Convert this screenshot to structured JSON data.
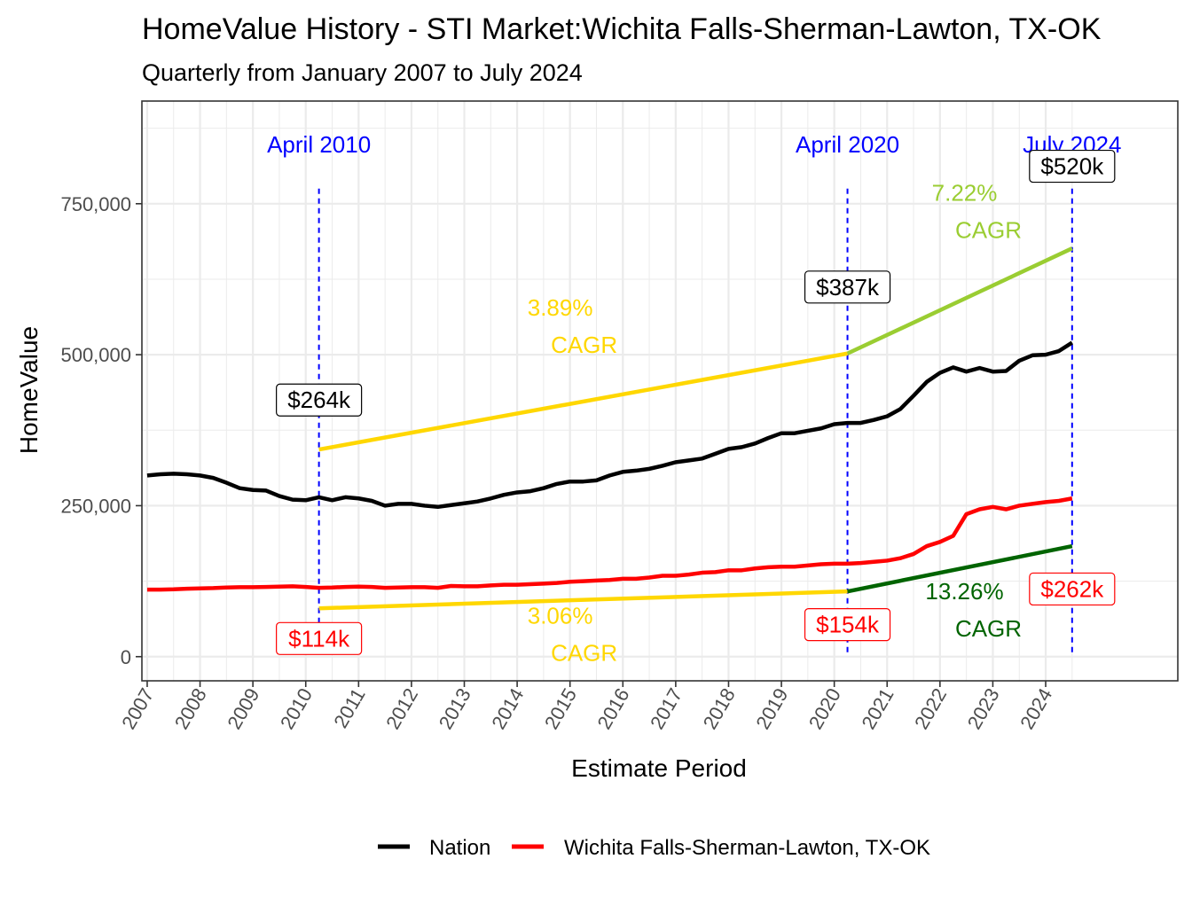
{
  "colors": {
    "nation": "#000000",
    "market": "#FF0000",
    "cagr_past": "#FFD700",
    "cagr_nation_recent": "#9ACD32",
    "cagr_market_recent": "#006400",
    "marker": "#0000FF",
    "grid": "#EBEBEB",
    "panel_border": "#333333"
  },
  "chart_data": {
    "type": "line",
    "title": "HomeValue History - STI Market:Wichita Falls-Sherman-Lawton, TX-OK",
    "subtitle": "Quarterly from January 2007 to July 2024",
    "xlabel": "Estimate Period",
    "ylabel": "HomeValue",
    "xlim": [
      2006.9,
      2026.5
    ],
    "ylim": [
      -40000,
      920000
    ],
    "x_ticks": [
      2007,
      2008,
      2009,
      2010,
      2011,
      2012,
      2013,
      2014,
      2015,
      2016,
      2017,
      2018,
      2019,
      2020,
      2021,
      2022,
      2023,
      2024
    ],
    "x_tick_labels": [
      "2007",
      "2008",
      "2009",
      "2010",
      "2011",
      "2012",
      "2013",
      "2014",
      "2015",
      "2016",
      "2017",
      "2018",
      "2019",
      "2020",
      "2021",
      "2022",
      "2023",
      "2024"
    ],
    "y_ticks": [
      0,
      250000,
      500000,
      750000
    ],
    "y_tick_labels": [
      "0",
      "250,000",
      "500,000",
      "750,000"
    ],
    "grid": true,
    "legend_position": "bottom",
    "series": [
      {
        "name": "Nation",
        "color_key": "nation",
        "points": [
          [
            2007.0,
            300000
          ],
          [
            2007.25,
            302000
          ],
          [
            2007.5,
            303000
          ],
          [
            2007.75,
            302000
          ],
          [
            2008.0,
            300000
          ],
          [
            2008.25,
            296000
          ],
          [
            2008.5,
            288000
          ],
          [
            2008.75,
            279000
          ],
          [
            2009.0,
            276000
          ],
          [
            2009.25,
            275000
          ],
          [
            2009.5,
            266000
          ],
          [
            2009.75,
            260000
          ],
          [
            2010.0,
            259000
          ],
          [
            2010.25,
            264000
          ],
          [
            2010.5,
            259000
          ],
          [
            2010.75,
            264000
          ],
          [
            2011.0,
            262000
          ],
          [
            2011.25,
            258000
          ],
          [
            2011.5,
            250000
          ],
          [
            2011.75,
            253000
          ],
          [
            2012.0,
            253000
          ],
          [
            2012.25,
            250000
          ],
          [
            2012.5,
            248000
          ],
          [
            2012.75,
            251000
          ],
          [
            2013.0,
            254000
          ],
          [
            2013.25,
            257000
          ],
          [
            2013.5,
            262000
          ],
          [
            2013.75,
            268000
          ],
          [
            2014.0,
            272000
          ],
          [
            2014.25,
            274000
          ],
          [
            2014.5,
            279000
          ],
          [
            2014.75,
            286000
          ],
          [
            2015.0,
            290000
          ],
          [
            2015.25,
            290000
          ],
          [
            2015.5,
            292000
          ],
          [
            2015.75,
            300000
          ],
          [
            2016.0,
            306000
          ],
          [
            2016.25,
            308000
          ],
          [
            2016.5,
            311000
          ],
          [
            2016.75,
            316000
          ],
          [
            2017.0,
            322000
          ],
          [
            2017.25,
            325000
          ],
          [
            2017.5,
            328000
          ],
          [
            2017.75,
            336000
          ],
          [
            2018.0,
            344000
          ],
          [
            2018.25,
            347000
          ],
          [
            2018.5,
            353000
          ],
          [
            2018.75,
            362000
          ],
          [
            2019.0,
            370000
          ],
          [
            2019.25,
            370000
          ],
          [
            2019.5,
            374000
          ],
          [
            2019.75,
            378000
          ],
          [
            2020.0,
            385000
          ],
          [
            2020.25,
            387000
          ],
          [
            2020.5,
            387000
          ],
          [
            2020.75,
            392000
          ],
          [
            2021.0,
            398000
          ],
          [
            2021.25,
            410000
          ],
          [
            2021.5,
            432000
          ],
          [
            2021.75,
            455000
          ],
          [
            2022.0,
            470000
          ],
          [
            2022.25,
            479000
          ],
          [
            2022.5,
            472000
          ],
          [
            2022.75,
            478000
          ],
          [
            2023.0,
            472000
          ],
          [
            2023.25,
            473000
          ],
          [
            2023.5,
            490000
          ],
          [
            2023.75,
            499000
          ],
          [
            2024.0,
            500000
          ],
          [
            2024.25,
            506000
          ],
          [
            2024.5,
            520000
          ]
        ]
      },
      {
        "name": "Wichita Falls-Sherman-Lawton, TX-OK",
        "color_key": "market",
        "points": [
          [
            2007.0,
            111000
          ],
          [
            2007.25,
            111000
          ],
          [
            2007.5,
            111500
          ],
          [
            2007.75,
            112500
          ],
          [
            2008.0,
            113000
          ],
          [
            2008.25,
            113500
          ],
          [
            2008.5,
            114500
          ],
          [
            2008.75,
            115000
          ],
          [
            2009.0,
            115000
          ],
          [
            2009.25,
            115500
          ],
          [
            2009.5,
            116000
          ],
          [
            2009.75,
            116500
          ],
          [
            2010.0,
            115500
          ],
          [
            2010.25,
            114000
          ],
          [
            2010.5,
            114500
          ],
          [
            2010.75,
            115500
          ],
          [
            2011.0,
            116000
          ],
          [
            2011.25,
            115500
          ],
          [
            2011.5,
            114000
          ],
          [
            2011.75,
            114500
          ],
          [
            2012.0,
            115000
          ],
          [
            2012.25,
            115000
          ],
          [
            2012.5,
            114000
          ],
          [
            2012.75,
            117000
          ],
          [
            2013.0,
            116500
          ],
          [
            2013.25,
            116500
          ],
          [
            2013.5,
            118000
          ],
          [
            2013.75,
            119000
          ],
          [
            2014.0,
            119000
          ],
          [
            2014.25,
            120000
          ],
          [
            2014.5,
            121000
          ],
          [
            2014.75,
            122000
          ],
          [
            2015.0,
            124000
          ],
          [
            2015.25,
            125000
          ],
          [
            2015.5,
            126000
          ],
          [
            2015.75,
            127000
          ],
          [
            2016.0,
            129000
          ],
          [
            2016.25,
            129000
          ],
          [
            2016.5,
            131000
          ],
          [
            2016.75,
            134000
          ],
          [
            2017.0,
            134000
          ],
          [
            2017.25,
            136000
          ],
          [
            2017.5,
            139000
          ],
          [
            2017.75,
            140000
          ],
          [
            2018.0,
            143000
          ],
          [
            2018.25,
            143000
          ],
          [
            2018.5,
            146000
          ],
          [
            2018.75,
            148000
          ],
          [
            2019.0,
            149000
          ],
          [
            2019.25,
            149000
          ],
          [
            2019.5,
            151000
          ],
          [
            2019.75,
            153000
          ],
          [
            2020.0,
            154000
          ],
          [
            2020.25,
            154000
          ],
          [
            2020.5,
            155000
          ],
          [
            2020.75,
            157000
          ],
          [
            2021.0,
            159000
          ],
          [
            2021.25,
            163000
          ],
          [
            2021.5,
            170000
          ],
          [
            2021.75,
            183000
          ],
          [
            2022.0,
            190000
          ],
          [
            2022.25,
            200000
          ],
          [
            2022.5,
            236000
          ],
          [
            2022.75,
            244000
          ],
          [
            2023.0,
            248000
          ],
          [
            2023.25,
            244000
          ],
          [
            2023.5,
            250000
          ],
          [
            2023.75,
            253000
          ],
          [
            2024.0,
            256000
          ],
          [
            2024.25,
            258000
          ],
          [
            2024.5,
            262000
          ]
        ]
      }
    ],
    "cagr_segments": [
      {
        "from": [
          2010.25,
          343000
        ],
        "to": [
          2020.25,
          502000
        ],
        "color_key": "cagr_past"
      },
      {
        "from": [
          2020.25,
          502000
        ],
        "to": [
          2024.5,
          676000
        ],
        "color_key": "cagr_nation_recent"
      },
      {
        "from": [
          2010.25,
          80000
        ],
        "to": [
          2020.25,
          108000
        ],
        "color_key": "cagr_past"
      },
      {
        "from": [
          2020.25,
          108000
        ],
        "to": [
          2024.5,
          183000
        ],
        "color_key": "cagr_market_recent"
      }
    ],
    "markers": [
      {
        "x": 2010.25,
        "label": "April 2010"
      },
      {
        "x": 2020.25,
        "label": "April 2020"
      },
      {
        "x": 2024.5,
        "label": "July 2024"
      }
    ],
    "marker_label_y": 848000,
    "marker_line_top": 775000,
    "value_labels": [
      {
        "x": 2010.25,
        "y": 425000,
        "text": "$264k",
        "color_key": "nation"
      },
      {
        "x": 2020.25,
        "y": 612000,
        "text": "$387k",
        "color_key": "nation"
      },
      {
        "x": 2024.5,
        "y": 812000,
        "text": "$520k",
        "color_key": "nation"
      },
      {
        "x": 2010.25,
        "y": 30000,
        "text": "$114k",
        "color_key": "market"
      },
      {
        "x": 2020.25,
        "y": 53000,
        "text": "$154k",
        "color_key": "market"
      },
      {
        "x": 2024.5,
        "y": 112000,
        "text": "$262k",
        "color_key": "market"
      }
    ],
    "cagr_labels": [
      {
        "x": 2015.15,
        "y": 565000,
        "rate": "3.89%",
        "suffix": "CAGR",
        "color_key": "cagr_past"
      },
      {
        "x": 2022.8,
        "y": 755000,
        "rate": "7.22%",
        "suffix": "CAGR",
        "color_key": "cagr_nation_recent"
      },
      {
        "x": 2015.15,
        "y": 55000,
        "rate": "3.06%",
        "suffix": "CAGR",
        "color_key": "cagr_past"
      },
      {
        "x": 2022.8,
        "y": 95000,
        "rate": "13.26%",
        "suffix": "CAGR",
        "color_key": "cagr_market_recent"
      }
    ]
  }
}
